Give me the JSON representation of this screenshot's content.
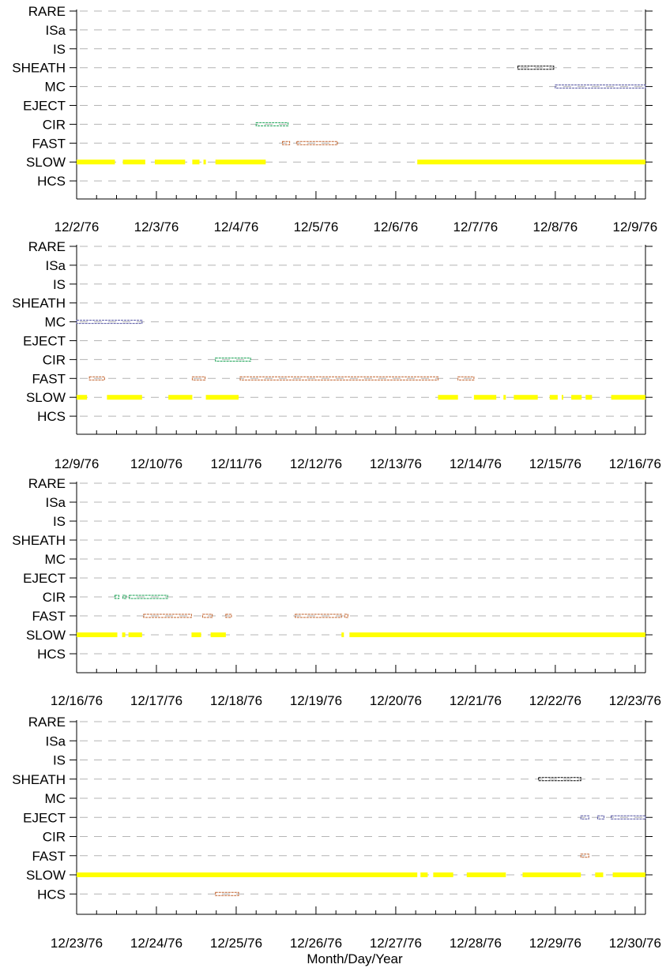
{
  "chart_data": {
    "type": "scatter",
    "xlabel": "Month/Day/Year",
    "categories": [
      "RARE",
      "ISa",
      "IS",
      "SHEATH",
      "MC",
      "EJECT",
      "CIR",
      "FAST",
      "SLOW",
      "HCS"
    ],
    "colors": {
      "SLOW": "#ffff00",
      "FAST": "#c0602a",
      "CIR": "#14a050",
      "MC": "#5050a0",
      "EJECT": "#5050a0",
      "SHEATH": "#000000",
      "HCS": "#c0602a"
    },
    "panels": [
      {
        "x_start": "12/2/76",
        "tick_labels": [
          "12/2/76",
          "12/3/76",
          "12/4/76",
          "12/5/76",
          "12/6/76",
          "12/7/76",
          "12/8/76",
          "12/9/76"
        ],
        "series": [
          {
            "category": "SLOW",
            "intervals": [
              [
                0,
                0.48
              ],
              [
                0.58,
                0.86
              ],
              [
                0.98,
                1.36
              ],
              [
                1.45,
                1.54
              ],
              [
                1.59,
                1.62
              ],
              [
                1.74,
                2.37
              ],
              [
                4.27,
                7.15
              ]
            ]
          },
          {
            "category": "FAST",
            "intervals": [
              [
                2.58,
                2.67
              ],
              [
                2.76,
                3.27
              ]
            ]
          },
          {
            "category": "CIR",
            "intervals": [
              [
                2.25,
                2.65
              ]
            ]
          },
          {
            "category": "MC",
            "intervals": [
              [
                6.0,
                7.15
              ]
            ]
          },
          {
            "category": "SHEATH",
            "intervals": [
              [
                5.53,
                5.98
              ]
            ]
          }
        ]
      },
      {
        "x_start": "12/9/76",
        "tick_labels": [
          "12/9/76",
          "12/10/76",
          "12/11/76",
          "12/12/76",
          "12/13/76",
          "12/14/76",
          "12/15/76",
          "12/16/76"
        ],
        "series": [
          {
            "category": "SLOW",
            "intervals": [
              [
                0,
                0.13
              ],
              [
                0.38,
                0.82
              ],
              [
                1.15,
                1.45
              ],
              [
                1.62,
                2.03
              ],
              [
                4.53,
                4.78
              ],
              [
                4.98,
                5.26
              ],
              [
                5.35,
                5.38
              ],
              [
                5.48,
                5.78
              ],
              [
                5.93,
                6.03
              ],
              [
                6.08,
                6.1
              ],
              [
                6.2,
                6.33
              ],
              [
                6.38,
                6.46
              ],
              [
                6.7,
                7.15
              ]
            ]
          },
          {
            "category": "FAST",
            "intervals": [
              [
                0.16,
                0.35
              ],
              [
                1.45,
                1.61
              ],
              [
                2.05,
                4.53
              ],
              [
                4.78,
                4.98
              ]
            ]
          },
          {
            "category": "CIR",
            "intervals": [
              [
                1.74,
                2.18
              ]
            ]
          },
          {
            "category": "MC",
            "intervals": [
              [
                0,
                0.82
              ]
            ]
          }
        ]
      },
      {
        "x_start": "12/16/76",
        "tick_labels": [
          "12/16/76",
          "12/17/76",
          "12/18/76",
          "12/19/76",
          "12/20/76",
          "12/21/76",
          "12/22/76",
          "12/23/76"
        ],
        "series": [
          {
            "category": "SLOW",
            "intervals": [
              [
                0,
                0.51
              ],
              [
                0.57,
                0.61
              ],
              [
                0.65,
                0.82
              ],
              [
                1.44,
                1.56
              ],
              [
                1.68,
                1.87
              ],
              [
                3.32,
                3.35
              ],
              [
                3.42,
                7.15
              ]
            ]
          },
          {
            "category": "FAST",
            "intervals": [
              [
                0.84,
                1.44
              ],
              [
                1.58,
                1.7
              ],
              [
                1.87,
                1.94
              ],
              [
                2.74,
                3.32
              ],
              [
                3.36,
                3.4
              ]
            ]
          },
          {
            "category": "CIR",
            "intervals": [
              [
                0.48,
                0.53
              ],
              [
                0.58,
                0.62
              ],
              [
                0.66,
                1.14
              ]
            ]
          }
        ]
      },
      {
        "x_start": "12/23/76",
        "tick_labels": [
          "12/23/76",
          "12/24/76",
          "12/25/76",
          "12/26/76",
          "12/27/76",
          "12/28/76",
          "12/29/76",
          "12/30/76"
        ],
        "series": [
          {
            "category": "SLOW",
            "intervals": [
              [
                0,
                4.27
              ],
              [
                4.31,
                4.4
              ],
              [
                4.47,
                4.72
              ],
              [
                4.89,
                5.38
              ],
              [
                5.59,
                6.32
              ],
              [
                6.5,
                6.6
              ],
              [
                6.72,
                7.15
              ]
            ]
          },
          {
            "category": "FAST",
            "intervals": [
              [
                6.32,
                6.42
              ]
            ]
          },
          {
            "category": "EJECT",
            "intervals": [
              [
                6.32,
                6.42
              ],
              [
                6.53,
                6.61
              ],
              [
                6.7,
                7.15
              ]
            ]
          },
          {
            "category": "SHEATH",
            "intervals": [
              [
                5.79,
                6.32
              ]
            ]
          },
          {
            "category": "HCS",
            "intervals": [
              [
                1.74,
                2.03
              ]
            ]
          }
        ]
      }
    ]
  }
}
